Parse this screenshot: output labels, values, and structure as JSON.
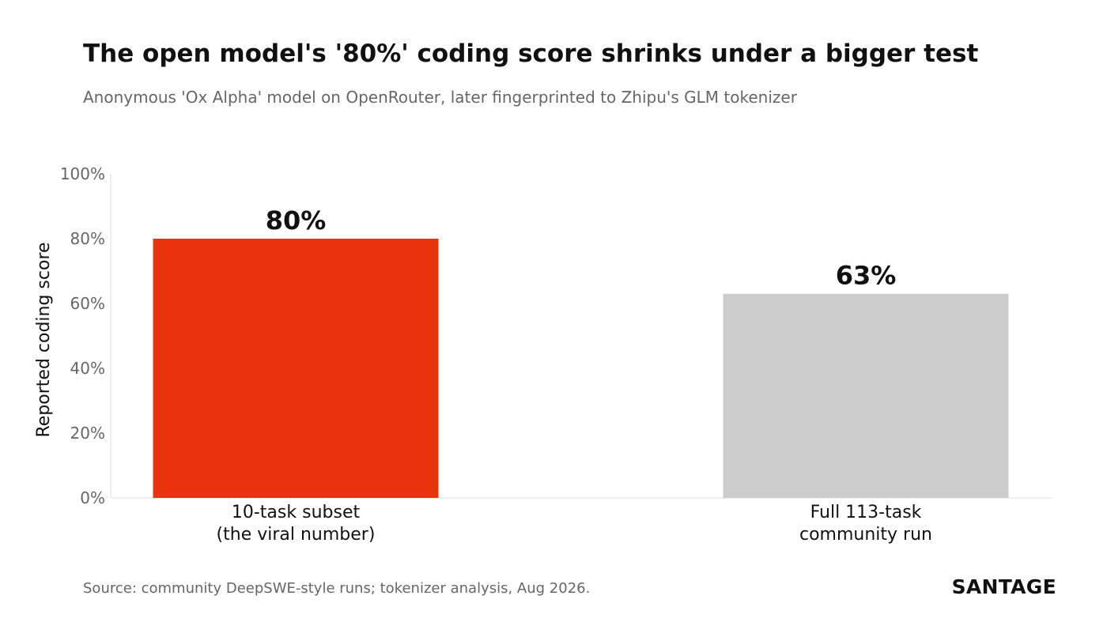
{
  "header": {
    "title": "The open model's '80%' coding score shrinks under a bigger test",
    "subtitle": "Anonymous 'Ox Alpha' model on OpenRouter, later fingerprinted to Zhipu's GLM tokenizer"
  },
  "footer": {
    "source": "Source: community DeepSWE-style runs; tokenizer analysis, Aug 2026.",
    "brand": "SANTAGE"
  },
  "colors": {
    "highlight": "#e8340c",
    "neutral": "#cccccc",
    "axis": "#dddddd",
    "tick_text": "#666666",
    "label_text": "#111111"
  },
  "chart_data": {
    "type": "bar",
    "title": "The open model's '80%' coding score shrinks under a bigger test",
    "subtitle": "Anonymous 'Ox Alpha' model on OpenRouter, later fingerprinted to Zhipu's GLM tokenizer",
    "xlabel": "",
    "ylabel": "Reported coding score",
    "ylim": [
      0,
      100
    ],
    "yticks": [
      0,
      20,
      40,
      60,
      80,
      100
    ],
    "ytick_labels": [
      "0%",
      "20%",
      "40%",
      "60%",
      "80%",
      "100%"
    ],
    "grid": false,
    "categories": [
      [
        "10-task subset",
        "(the viral number)"
      ],
      [
        "Full 113-task",
        "community run"
      ]
    ],
    "values": [
      80,
      63
    ],
    "data_labels": [
      "80%",
      "63%"
    ],
    "bar_colors": [
      "#e8340c",
      "#cccccc"
    ]
  }
}
